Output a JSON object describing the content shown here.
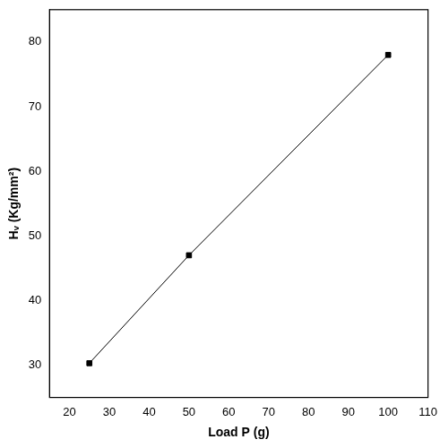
{
  "chart_data": {
    "type": "line",
    "x_label": "Load P (g)",
    "y_label": "Hᵥ (Kg/mm²)",
    "x": [
      25,
      50,
      100
    ],
    "values": [
      30.3,
      47,
      78
    ],
    "color": "#000000",
    "marker": "square",
    "line_style": "solid",
    "xlim": [
      15,
      110
    ],
    "xticks": [
      20,
      30,
      40,
      50,
      60,
      70,
      80,
      90,
      100,
      110
    ],
    "ylim": [
      25,
      85
    ],
    "yticks": [
      30,
      40,
      50,
      60,
      70,
      80
    ],
    "grid": false
  }
}
